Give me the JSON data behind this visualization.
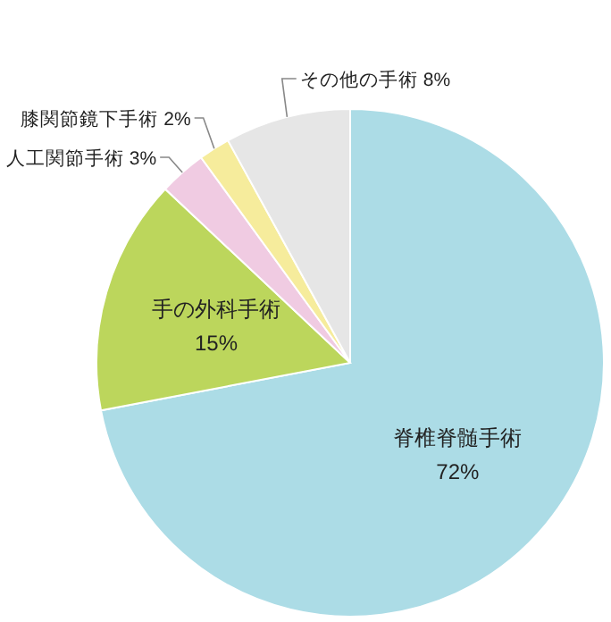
{
  "chart_data": {
    "type": "pie",
    "categories": [
      "脊椎脊髄手術",
      "手の外科手術",
      "人工関節手術",
      "膝関節鏡下手術",
      "その他の手術"
    ],
    "values": [
      72,
      15,
      3,
      2,
      8
    ],
    "colors": [
      "#acdce6",
      "#bcd65c",
      "#f0cbe2",
      "#f6ec9c",
      "#e6e6e6"
    ],
    "value_labels": [
      "72%",
      "15%",
      "3%",
      "2%",
      "8%"
    ]
  }
}
